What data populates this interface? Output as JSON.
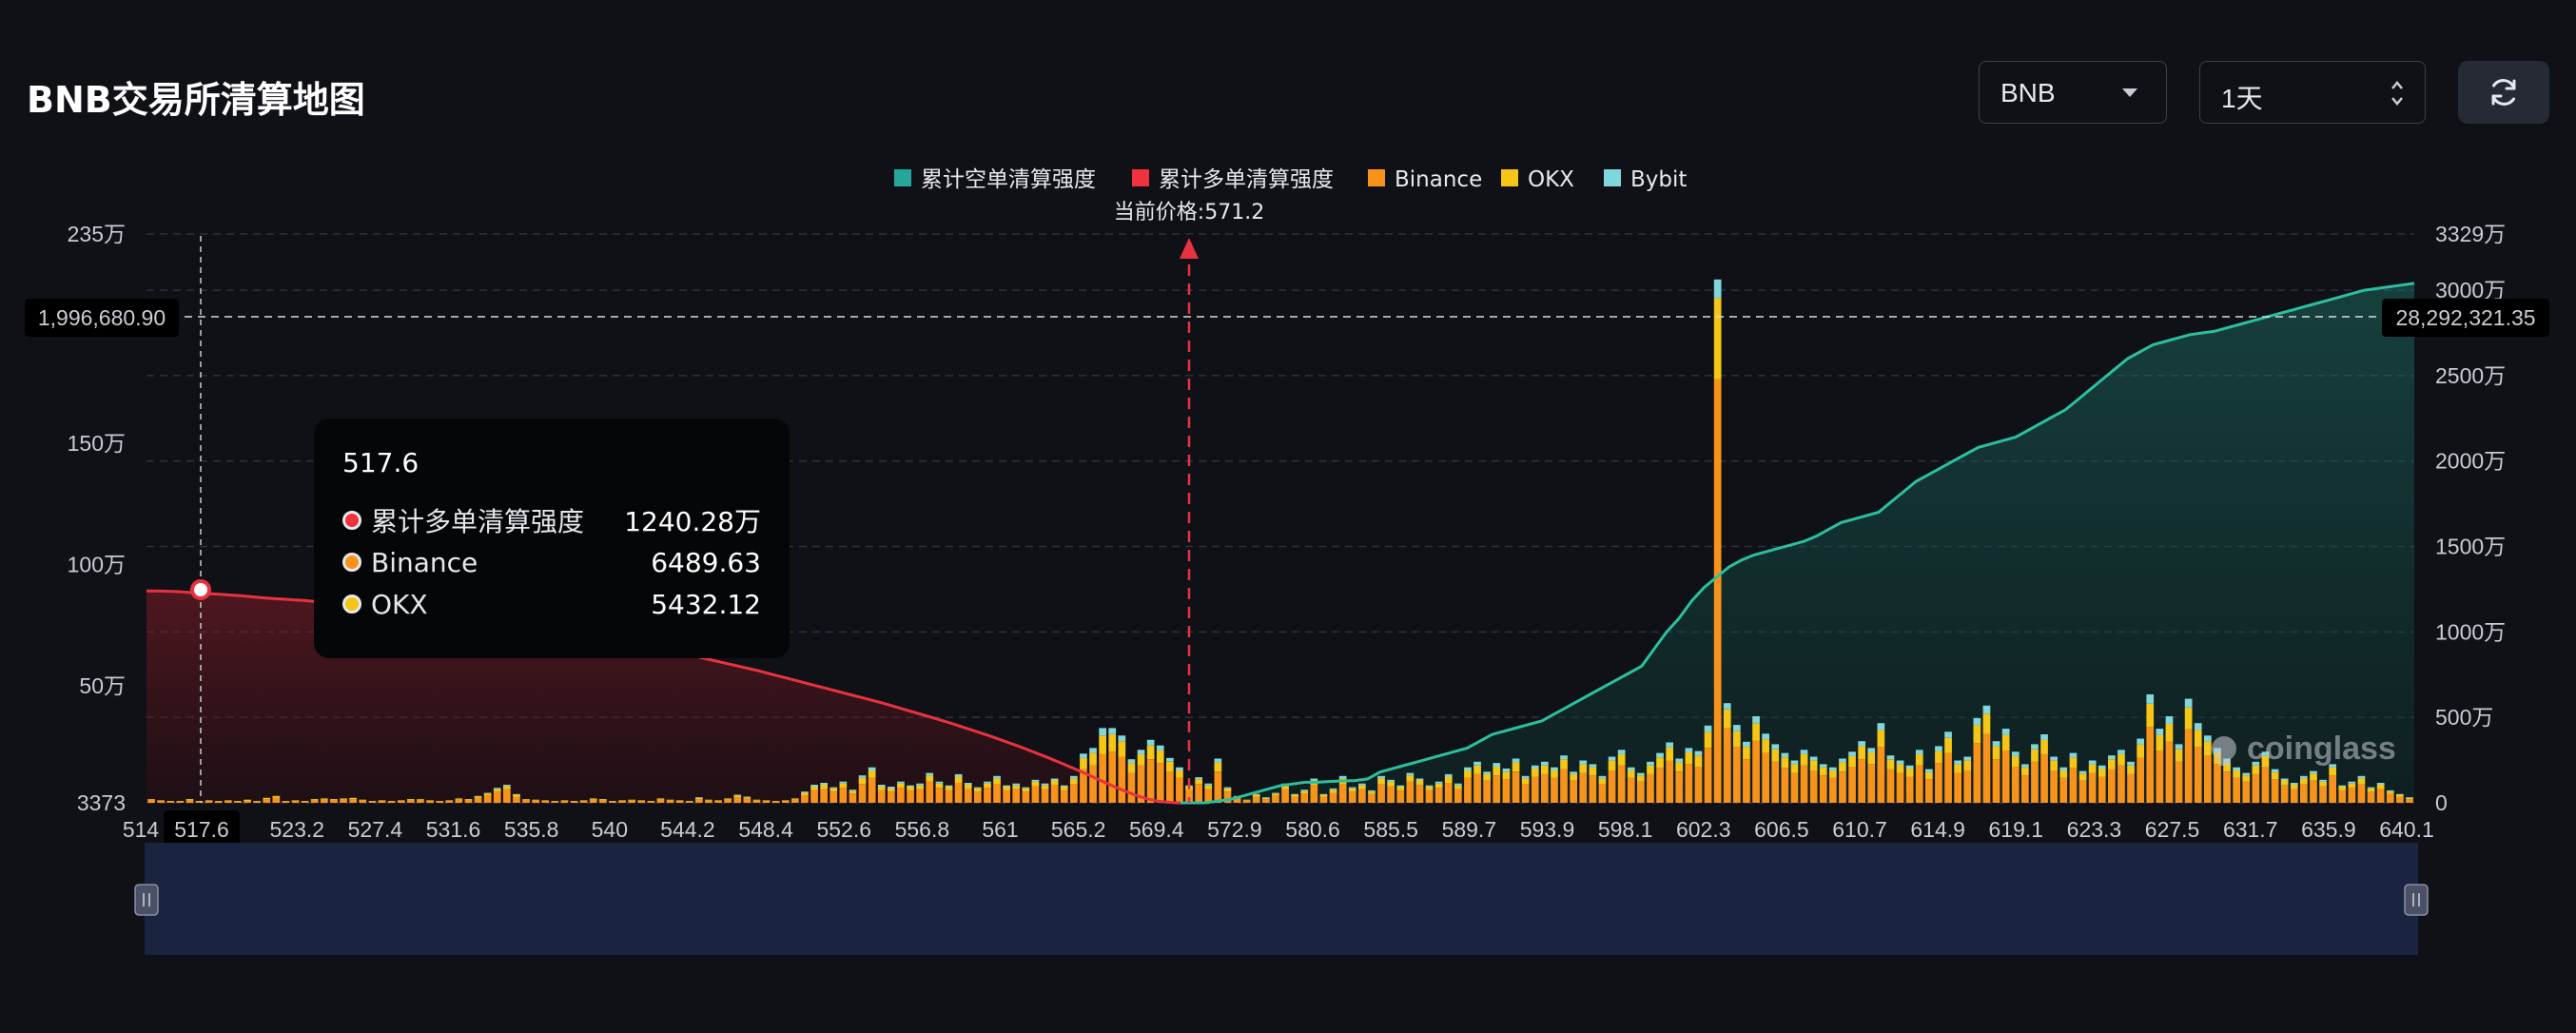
{
  "header": {
    "title": "BNB交易所清算地图",
    "symbol_select": "BNB",
    "interval_select": "1天"
  },
  "icons": {
    "refresh": "refresh-icon",
    "dropdown": "chevron-down-icon",
    "updown": "updown-icon",
    "watermark": "coinglass-logo"
  },
  "tooltip": {
    "title": "517.6",
    "rows": [
      {
        "name": "累计多单清算强度",
        "value": "1240.28万",
        "color": "#f0313f"
      },
      {
        "name": "Binance",
        "value": "6489.63",
        "color": "#f7931a"
      },
      {
        "name": "OKX",
        "value": "5432.12",
        "color": "#f5c518"
      }
    ]
  },
  "watermark": "coinglass",
  "chart_data": {
    "type": "bar",
    "current_price_label": "当前价格:571.2",
    "current_price": 571.2,
    "crosshair": {
      "x_label": "517.6",
      "left_value": "1,996,680.90",
      "right_value": "28,292,321.35"
    },
    "legend": [
      {
        "name": "累计空单清算强度",
        "color": "#26a69a"
      },
      {
        "name": "累计多单清算强度",
        "color": "#f0313f"
      },
      {
        "name": "Binance",
        "color": "#f7931a"
      },
      {
        "name": "OKX",
        "color": "#f5c518"
      },
      {
        "name": "Bybit",
        "color": "#7fd6dc"
      }
    ],
    "x_ticks": [
      "514",
      "517.6",
      "523.2",
      "527.4",
      "531.6",
      "535.8",
      "540",
      "544.2",
      "548.4",
      "552.6",
      "556.8",
      "561",
      "565.2",
      "569.4",
      "572.9",
      "580.6",
      "585.5",
      "589.7",
      "593.9",
      "598.1",
      "602.3",
      "606.5",
      "610.7",
      "614.9",
      "619.1",
      "623.3",
      "627.5",
      "631.7",
      "635.9",
      "640.1"
    ],
    "y_left_ticks": [
      "235万",
      "150万",
      "100万",
      "50万",
      "3373"
    ],
    "y_right_ticks": [
      "3329万",
      "3000万",
      "2500万",
      "2000万",
      "1500万",
      "1000万",
      "500万",
      "0"
    ],
    "y_left_range": [
      3373,
      2350000
    ],
    "y_right_range": [
      0,
      33290000
    ],
    "bar_stacks": [
      [
        0.05,
        0.01,
        0
      ],
      [
        0.03,
        0.01,
        0
      ],
      [
        0.02,
        0.01,
        0
      ],
      [
        0.02,
        0.01,
        0
      ],
      [
        0.04,
        0.02,
        0
      ],
      [
        0.02,
        0.01,
        0
      ],
      [
        0.03,
        0.01,
        0
      ],
      [
        0.02,
        0.01,
        0
      ],
      [
        0.03,
        0.01,
        0
      ],
      [
        0.02,
        0.01,
        0
      ],
      [
        0.03,
        0.02,
        0
      ],
      [
        0.02,
        0.01,
        0
      ],
      [
        0.06,
        0.02,
        0
      ],
      [
        0.08,
        0.03,
        0
      ],
      [
        0.02,
        0.01,
        0
      ],
      [
        0.03,
        0.01,
        0
      ],
      [
        0.02,
        0.01,
        0
      ],
      [
        0.04,
        0.02,
        0
      ],
      [
        0.05,
        0.02,
        0
      ],
      [
        0.04,
        0.02,
        0
      ],
      [
        0.05,
        0.02,
        0
      ],
      [
        0.06,
        0.02,
        0
      ],
      [
        0.04,
        0.01,
        0
      ],
      [
        0.02,
        0.01,
        0
      ],
      [
        0.03,
        0.01,
        0
      ],
      [
        0.02,
        0.01,
        0
      ],
      [
        0.03,
        0.01,
        0
      ],
      [
        0.04,
        0.02,
        0
      ],
      [
        0.05,
        0.01,
        0
      ],
      [
        0.03,
        0.01,
        0
      ],
      [
        0.02,
        0.01,
        0
      ],
      [
        0.03,
        0.01,
        0
      ],
      [
        0.05,
        0.02,
        0
      ],
      [
        0.04,
        0.02,
        0
      ],
      [
        0.08,
        0.02,
        0.01
      ],
      [
        0.12,
        0.03,
        0.01
      ],
      [
        0.18,
        0.04,
        0.02
      ],
      [
        0.22,
        0.05,
        0.02
      ],
      [
        0.1,
        0.03,
        0.01
      ],
      [
        0.05,
        0.01,
        0
      ],
      [
        0.04,
        0.01,
        0
      ],
      [
        0.03,
        0.01,
        0
      ],
      [
        0.02,
        0.01,
        0
      ],
      [
        0.03,
        0.01,
        0
      ],
      [
        0.02,
        0.01,
        0
      ],
      [
        0.03,
        0.01,
        0
      ],
      [
        0.05,
        0.02,
        0
      ],
      [
        0.04,
        0.02,
        0
      ],
      [
        0.02,
        0.01,
        0
      ],
      [
        0.03,
        0.01,
        0
      ],
      [
        0.04,
        0.01,
        0
      ],
      [
        0.03,
        0.01,
        0
      ],
      [
        0.02,
        0.01,
        0
      ],
      [
        0.05,
        0.02,
        0
      ],
      [
        0.04,
        0.01,
        0
      ],
      [
        0.03,
        0.01,
        0
      ],
      [
        0.02,
        0.01,
        0
      ],
      [
        0.06,
        0.02,
        0.01
      ],
      [
        0.04,
        0.01,
        0
      ],
      [
        0.03,
        0.01,
        0
      ],
      [
        0.05,
        0.02,
        0
      ],
      [
        0.09,
        0.03,
        0.01
      ],
      [
        0.07,
        0.02,
        0.01
      ],
      [
        0.04,
        0.01,
        0
      ],
      [
        0.03,
        0.01,
        0
      ],
      [
        0.02,
        0.01,
        0
      ],
      [
        0.03,
        0.01,
        0
      ],
      [
        0.05,
        0.02,
        0
      ],
      [
        0.12,
        0.04,
        0.02
      ],
      [
        0.2,
        0.06,
        0.03
      ],
      [
        0.22,
        0.07,
        0.03
      ],
      [
        0.18,
        0.05,
        0.02
      ],
      [
        0.24,
        0.07,
        0.03
      ],
      [
        0.15,
        0.04,
        0.02
      ],
      [
        0.3,
        0.1,
        0.04
      ],
      [
        0.4,
        0.12,
        0.05
      ],
      [
        0.2,
        0.06,
        0.03
      ],
      [
        0.18,
        0.05,
        0.03
      ],
      [
        0.24,
        0.07,
        0.03
      ],
      [
        0.2,
        0.06,
        0.02
      ],
      [
        0.22,
        0.06,
        0.03
      ],
      [
        0.34,
        0.1,
        0.04
      ],
      [
        0.24,
        0.07,
        0.03
      ],
      [
        0.2,
        0.06,
        0.02
      ],
      [
        0.32,
        0.1,
        0.04
      ],
      [
        0.22,
        0.07,
        0.03
      ],
      [
        0.18,
        0.05,
        0.02
      ],
      [
        0.24,
        0.07,
        0.03
      ],
      [
        0.3,
        0.09,
        0.04
      ],
      [
        0.2,
        0.06,
        0.02
      ],
      [
        0.22,
        0.06,
        0.03
      ],
      [
        0.18,
        0.05,
        0.02
      ],
      [
        0.26,
        0.08,
        0.03
      ],
      [
        0.22,
        0.06,
        0.03
      ],
      [
        0.28,
        0.08,
        0.03
      ],
      [
        0.2,
        0.06,
        0.02
      ],
      [
        0.3,
        0.09,
        0.04
      ],
      [
        0.54,
        0.18,
        0.07
      ],
      [
        0.6,
        0.2,
        0.08
      ],
      [
        0.78,
        0.3,
        0.12
      ],
      [
        0.82,
        0.28,
        0.1
      ],
      [
        0.74,
        0.25,
        0.09
      ],
      [
        0.48,
        0.16,
        0.06
      ],
      [
        0.6,
        0.18,
        0.07
      ],
      [
        0.7,
        0.22,
        0.09
      ],
      [
        0.64,
        0.2,
        0.08
      ],
      [
        0.5,
        0.16,
        0.06
      ],
      [
        0.4,
        0.12,
        0.05
      ],
      [
        0.2,
        0.06,
        0.02
      ],
      [
        0.3,
        0.08,
        0.03
      ],
      [
        0.22,
        0.06,
        0.03
      ],
      [
        0.5,
        0.15,
        0.06
      ],
      [
        0.18,
        0.05,
        0.02
      ],
      [
        0.08,
        0.02,
        0.01
      ],
      [
        0.04,
        0.01,
        0
      ],
      [
        0.1,
        0.03,
        0.01
      ],
      [
        0.06,
        0.02,
        0.01
      ],
      [
        0.12,
        0.03,
        0.01
      ],
      [
        0.22,
        0.06,
        0.03
      ],
      [
        0.1,
        0.03,
        0.01
      ],
      [
        0.15,
        0.04,
        0.02
      ],
      [
        0.28,
        0.08,
        0.03
      ],
      [
        0.1,
        0.03,
        0.01
      ],
      [
        0.16,
        0.05,
        0.02
      ],
      [
        0.3,
        0.09,
        0.04
      ],
      [
        0.18,
        0.05,
        0.02
      ],
      [
        0.22,
        0.06,
        0.03
      ],
      [
        0.14,
        0.04,
        0.02
      ],
      [
        0.3,
        0.09,
        0.04
      ],
      [
        0.26,
        0.08,
        0.03
      ],
      [
        0.2,
        0.06,
        0.02
      ],
      [
        0.34,
        0.1,
        0.04
      ],
      [
        0.28,
        0.08,
        0.03
      ],
      [
        0.2,
        0.06,
        0.02
      ],
      [
        0.24,
        0.07,
        0.03
      ],
      [
        0.32,
        0.1,
        0.04
      ],
      [
        0.22,
        0.06,
        0.03
      ],
      [
        0.4,
        0.12,
        0.05
      ],
      [
        0.46,
        0.14,
        0.06
      ],
      [
        0.36,
        0.1,
        0.04
      ],
      [
        0.44,
        0.14,
        0.06
      ],
      [
        0.38,
        0.12,
        0.05
      ],
      [
        0.5,
        0.15,
        0.06
      ],
      [
        0.3,
        0.09,
        0.04
      ],
      [
        0.42,
        0.13,
        0.05
      ],
      [
        0.46,
        0.14,
        0.06
      ],
      [
        0.4,
        0.12,
        0.05
      ],
      [
        0.54,
        0.16,
        0.06
      ],
      [
        0.36,
        0.1,
        0.04
      ],
      [
        0.48,
        0.14,
        0.06
      ],
      [
        0.44,
        0.13,
        0.05
      ],
      [
        0.3,
        0.09,
        0.04
      ],
      [
        0.52,
        0.16,
        0.06
      ],
      [
        0.6,
        0.18,
        0.07
      ],
      [
        0.4,
        0.12,
        0.05
      ],
      [
        0.34,
        0.1,
        0.04
      ],
      [
        0.46,
        0.14,
        0.06
      ],
      [
        0.56,
        0.17,
        0.07
      ],
      [
        0.68,
        0.21,
        0.08
      ],
      [
        0.5,
        0.15,
        0.06
      ],
      [
        0.62,
        0.19,
        0.07
      ],
      [
        0.58,
        0.18,
        0.07
      ],
      [
        0.88,
        0.26,
        0.1
      ],
      [
        6.8,
        1.3,
        0.3
      ],
      [
        1.2,
        0.3,
        0.1
      ],
      [
        0.9,
        0.25,
        0.1
      ],
      [
        0.7,
        0.2,
        0.08
      ],
      [
        1.0,
        0.28,
        0.11
      ],
      [
        0.8,
        0.22,
        0.09
      ],
      [
        0.66,
        0.2,
        0.08
      ],
      [
        0.56,
        0.17,
        0.07
      ],
      [
        0.48,
        0.14,
        0.06
      ],
      [
        0.6,
        0.18,
        0.07
      ],
      [
        0.52,
        0.16,
        0.06
      ],
      [
        0.44,
        0.13,
        0.05
      ],
      [
        0.4,
        0.12,
        0.05
      ],
      [
        0.5,
        0.15,
        0.06
      ],
      [
        0.58,
        0.17,
        0.07
      ],
      [
        0.7,
        0.21,
        0.08
      ],
      [
        0.62,
        0.19,
        0.07
      ],
      [
        0.9,
        0.27,
        0.11
      ],
      [
        0.54,
        0.16,
        0.06
      ],
      [
        0.48,
        0.14,
        0.06
      ],
      [
        0.42,
        0.13,
        0.05
      ],
      [
        0.6,
        0.18,
        0.07
      ],
      [
        0.38,
        0.11,
        0.05
      ],
      [
        0.64,
        0.19,
        0.08
      ],
      [
        0.8,
        0.24,
        0.1
      ],
      [
        0.48,
        0.14,
        0.06
      ],
      [
        0.52,
        0.16,
        0.06
      ],
      [
        0.96,
        0.29,
        0.11
      ],
      [
        1.1,
        0.33,
        0.13
      ],
      [
        0.7,
        0.21,
        0.08
      ],
      [
        0.84,
        0.25,
        0.1
      ],
      [
        0.58,
        0.17,
        0.07
      ],
      [
        0.44,
        0.13,
        0.05
      ],
      [
        0.66,
        0.2,
        0.08
      ],
      [
        0.78,
        0.23,
        0.09
      ],
      [
        0.52,
        0.16,
        0.06
      ],
      [
        0.4,
        0.12,
        0.05
      ],
      [
        0.56,
        0.17,
        0.07
      ],
      [
        0.36,
        0.11,
        0.04
      ],
      [
        0.48,
        0.14,
        0.06
      ],
      [
        0.42,
        0.13,
        0.05
      ],
      [
        0.54,
        0.16,
        0.06
      ],
      [
        0.6,
        0.18,
        0.07
      ],
      [
        0.46,
        0.14,
        0.06
      ],
      [
        0.72,
        0.22,
        0.09
      ],
      [
        1.22,
        0.37,
        0.15
      ],
      [
        0.84,
        0.25,
        0.1
      ],
      [
        0.98,
        0.29,
        0.12
      ],
      [
        0.66,
        0.2,
        0.08
      ],
      [
        1.18,
        0.35,
        0.14
      ],
      [
        0.9,
        0.27,
        0.11
      ],
      [
        0.76,
        0.23,
        0.09
      ],
      [
        0.62,
        0.19,
        0.07
      ],
      [
        0.5,
        0.15,
        0.06
      ],
      [
        0.4,
        0.12,
        0.05
      ],
      [
        0.34,
        0.1,
        0.04
      ],
      [
        0.46,
        0.14,
        0.06
      ],
      [
        0.58,
        0.17,
        0.07
      ],
      [
        0.38,
        0.11,
        0.05
      ],
      [
        0.28,
        0.08,
        0.03
      ],
      [
        0.22,
        0.07,
        0.03
      ],
      [
        0.3,
        0.09,
        0.04
      ],
      [
        0.36,
        0.11,
        0.04
      ],
      [
        0.26,
        0.08,
        0.03
      ],
      [
        0.44,
        0.13,
        0.05
      ],
      [
        0.2,
        0.06,
        0.02
      ],
      [
        0.24,
        0.07,
        0.03
      ],
      [
        0.3,
        0.09,
        0.04
      ],
      [
        0.18,
        0.05,
        0.02
      ],
      [
        0.22,
        0.07,
        0.03
      ],
      [
        0.14,
        0.04,
        0.02
      ],
      [
        0.1,
        0.03,
        0.01
      ],
      [
        0.06,
        0.02,
        0.01
      ]
    ],
    "long_curve_wan": [
      1240,
      1240,
      1238,
      1236,
      1232,
      1228,
      1224,
      1220,
      1216,
      1212,
      1206,
      1200,
      1196,
      1192,
      1188,
      1184,
      1178,
      1172,
      1166,
      1160,
      1154,
      1148,
      1142,
      1136,
      1130,
      1124,
      1118,
      1112,
      1106,
      1100,
      1094,
      1088,
      1080,
      1072,
      1064,
      1054,
      1044,
      1034,
      1024,
      1014,
      1004,
      994,
      984,
      972,
      960,
      948,
      936,
      924,
      912,
      900,
      888,
      874,
      860,
      846,
      832,
      818,
      804,
      790,
      776,
      760,
      744,
      728,
      712,
      696,
      680,
      664,
      648,
      632,
      616,
      600,
      584,
      566,
      548,
      530,
      512,
      494,
      476,
      456,
      436,
      416,
      396,
      374,
      352,
      330,
      306,
      282,
      258,
      232,
      206,
      180,
      152,
      124,
      96,
      70,
      46,
      26,
      12,
      4,
      0,
      0
    ],
    "short_curve_wan": [
      0,
      0,
      0,
      10,
      20,
      40,
      60,
      80,
      100,
      110,
      120,
      120,
      125,
      128,
      130,
      140,
      180,
      200,
      220,
      240,
      260,
      280,
      300,
      320,
      360,
      400,
      420,
      440,
      460,
      480,
      520,
      560,
      600,
      640,
      680,
      720,
      760,
      800,
      900,
      1000,
      1080,
      1180,
      1260,
      1320,
      1380,
      1420,
      1450,
      1470,
      1490,
      1510,
      1530,
      1560,
      1600,
      1640,
      1660,
      1680,
      1700,
      1760,
      1820,
      1880,
      1920,
      1960,
      2000,
      2040,
      2080,
      2100,
      2120,
      2140,
      2180,
      2220,
      2260,
      2300,
      2360,
      2420,
      2480,
      2540,
      2600,
      2640,
      2680,
      2700,
      2720,
      2740,
      2750,
      2760,
      2780,
      2800,
      2820,
      2840,
      2860,
      2880,
      2900,
      2920,
      2940,
      2960,
      2980,
      3000,
      3010,
      3020,
      3030,
      3040
    ]
  }
}
